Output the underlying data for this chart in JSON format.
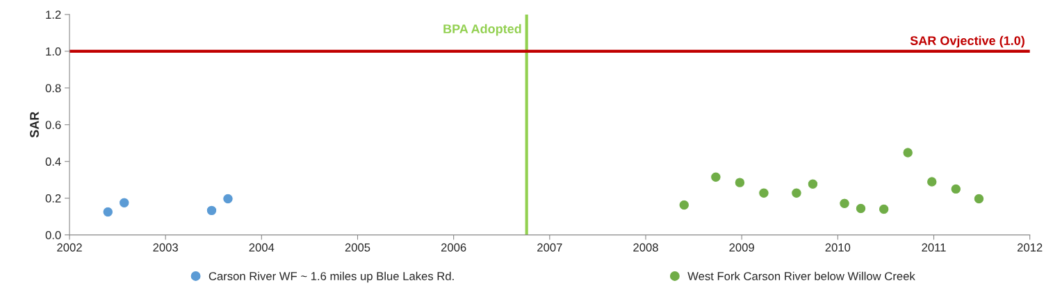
{
  "chart_data": {
    "type": "scatter",
    "ylabel": "SAR",
    "xlim": [
      2002,
      2012
    ],
    "xticks": [
      2002,
      2003,
      2004,
      2005,
      2006,
      2007,
      2008,
      2009,
      2010,
      2011,
      2012
    ],
    "ylim": [
      0,
      1.2
    ],
    "yticks": [
      {
        "value": 0,
        "label": "0.0"
      },
      {
        "value": 0.2,
        "label": "0.2"
      },
      {
        "value": 0.4,
        "label": "0.4"
      },
      {
        "value": 0.6,
        "label": "0.6"
      },
      {
        "value": 0.8,
        "label": "0.8"
      },
      {
        "value": 1.0,
        "label": "1.0"
      },
      {
        "value": 1.2,
        "label": "1.2"
      }
    ],
    "grid": false,
    "legend": "bottom",
    "marker": "circle",
    "series": [
      {
        "name": "Carson River WF ~ 1.6 miles up Blue Lakes Rd.",
        "color": "#5b9bd5",
        "x": [
          2002.4,
          2002.57,
          2003.48,
          2003.65
        ],
        "values": [
          0.125,
          0.175,
          0.133,
          0.197
        ]
      },
      {
        "name": "West Fork Carson River below Willow Creek",
        "color": "#70ad47",
        "x": [
          2008.4,
          2008.73,
          2008.98,
          2009.23,
          2009.57,
          2009.74,
          2010.07,
          2010.24,
          2010.48,
          2010.73,
          2010.98,
          2011.23,
          2011.47
        ],
        "values": [
          0.163,
          0.315,
          0.285,
          0.228,
          0.228,
          0.277,
          0.171,
          0.144,
          0.14,
          0.448,
          0.289,
          0.25,
          0.197
        ]
      }
    ],
    "ref_lines": [
      {
        "axis": "x",
        "value": 2006.76,
        "label": "BPA Adopted",
        "color": "#92d050"
      },
      {
        "axis": "y",
        "value": 1.0,
        "label": "SAR Ovjective (1.0)",
        "color": "#c00000"
      }
    ]
  }
}
